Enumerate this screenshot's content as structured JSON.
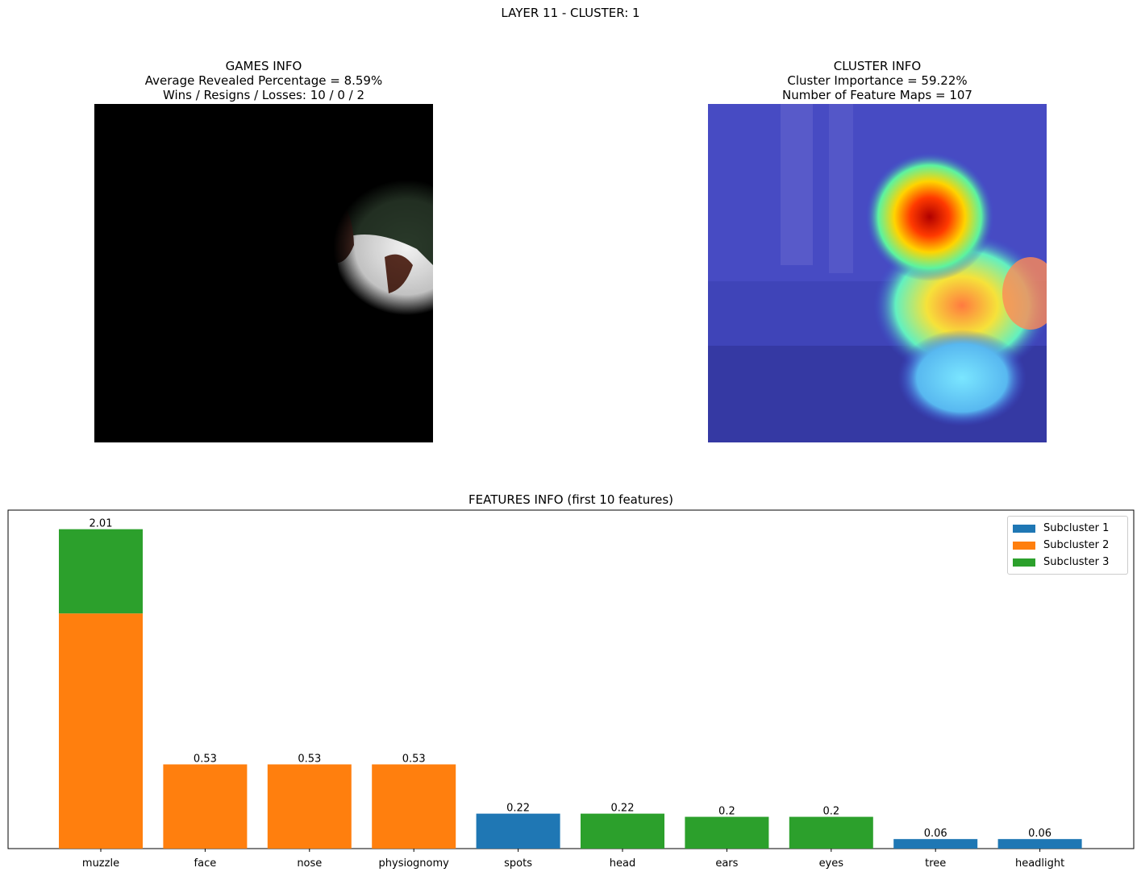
{
  "suptitle": "LAYER 11 - CLUSTER: 1",
  "games_info": {
    "heading": "GAMES INFO",
    "line1": "Average Revealed Percentage = 8.59%",
    "line2": "Wins / Resigns / Losses: 10 / 0 / 2"
  },
  "cluster_info": {
    "heading": "CLUSTER INFO",
    "line1": "Cluster Importance = 59.22%",
    "line2": "Number of Feature Maps = 107"
  },
  "colors": {
    "subcluster_1": "#1f77b4",
    "subcluster_2": "#ff7f0e",
    "subcluster_3": "#2ca02c"
  },
  "chart_data": {
    "type": "bar",
    "stacked": true,
    "title": "FEATURES INFO (first 10 features)",
    "xlabel": "",
    "ylabel": "",
    "ylim": [
      0,
      2.13
    ],
    "y_ticks_visible": false,
    "grid": false,
    "legend_position": "top-right",
    "categories": [
      "muzzle",
      "face",
      "nose",
      "physiognomy",
      "spots",
      "head",
      "ears",
      "eyes",
      "tree",
      "headlight"
    ],
    "series": [
      {
        "name": "Subcluster 1",
        "color": "#1f77b4",
        "values": [
          0,
          0,
          0,
          0,
          0.22,
          0,
          0,
          0,
          0.06,
          0.06
        ]
      },
      {
        "name": "Subcluster 2",
        "color": "#ff7f0e",
        "values": [
          1.48,
          0.53,
          0.53,
          0.53,
          0,
          0,
          0,
          0,
          0,
          0
        ]
      },
      {
        "name": "Subcluster 3",
        "color": "#2ca02c",
        "values": [
          0.53,
          0,
          0,
          0,
          0,
          0.22,
          0.2,
          0.2,
          0,
          0
        ]
      }
    ],
    "totals": [
      "2.01",
      "0.53",
      "0.53",
      "0.53",
      "0.22",
      "0.22",
      "0.2",
      "0.2",
      "0.06",
      "0.06"
    ]
  }
}
